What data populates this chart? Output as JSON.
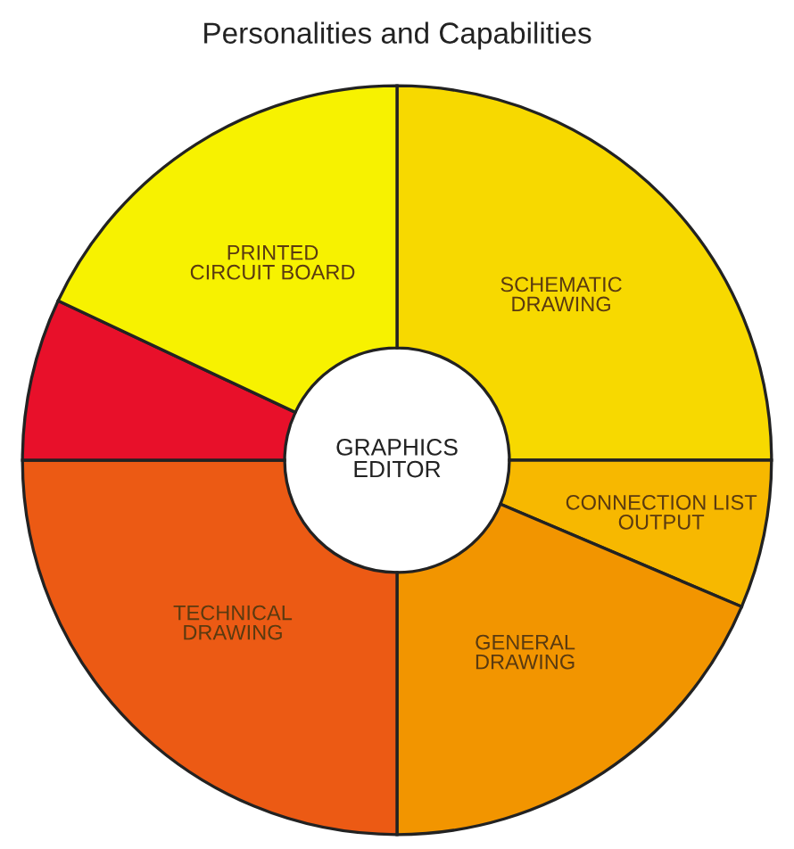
{
  "chart_data": {
    "type": "donut",
    "title": "Personalities and Capabilities",
    "categories": [
      "SCHEMATIC\nDRAWING",
      "CONNECTION LIST\nOUTPUT",
      "GENERAL\nDRAWING",
      "TECHNICAL\nDRAWING",
      null,
      "PRINTED\nCIRCUIT BOARD"
    ],
    "values": [
      25,
      6.4,
      18.6,
      25,
      7,
      18
    ],
    "colors": [
      "#f7d900",
      "#f7b800",
      "#f29500",
      "#ec5a14",
      "#e8102a",
      "#f7f200"
    ],
    "annotations": [
      "GRAPHICS\nEDITOR"
    ]
  }
}
